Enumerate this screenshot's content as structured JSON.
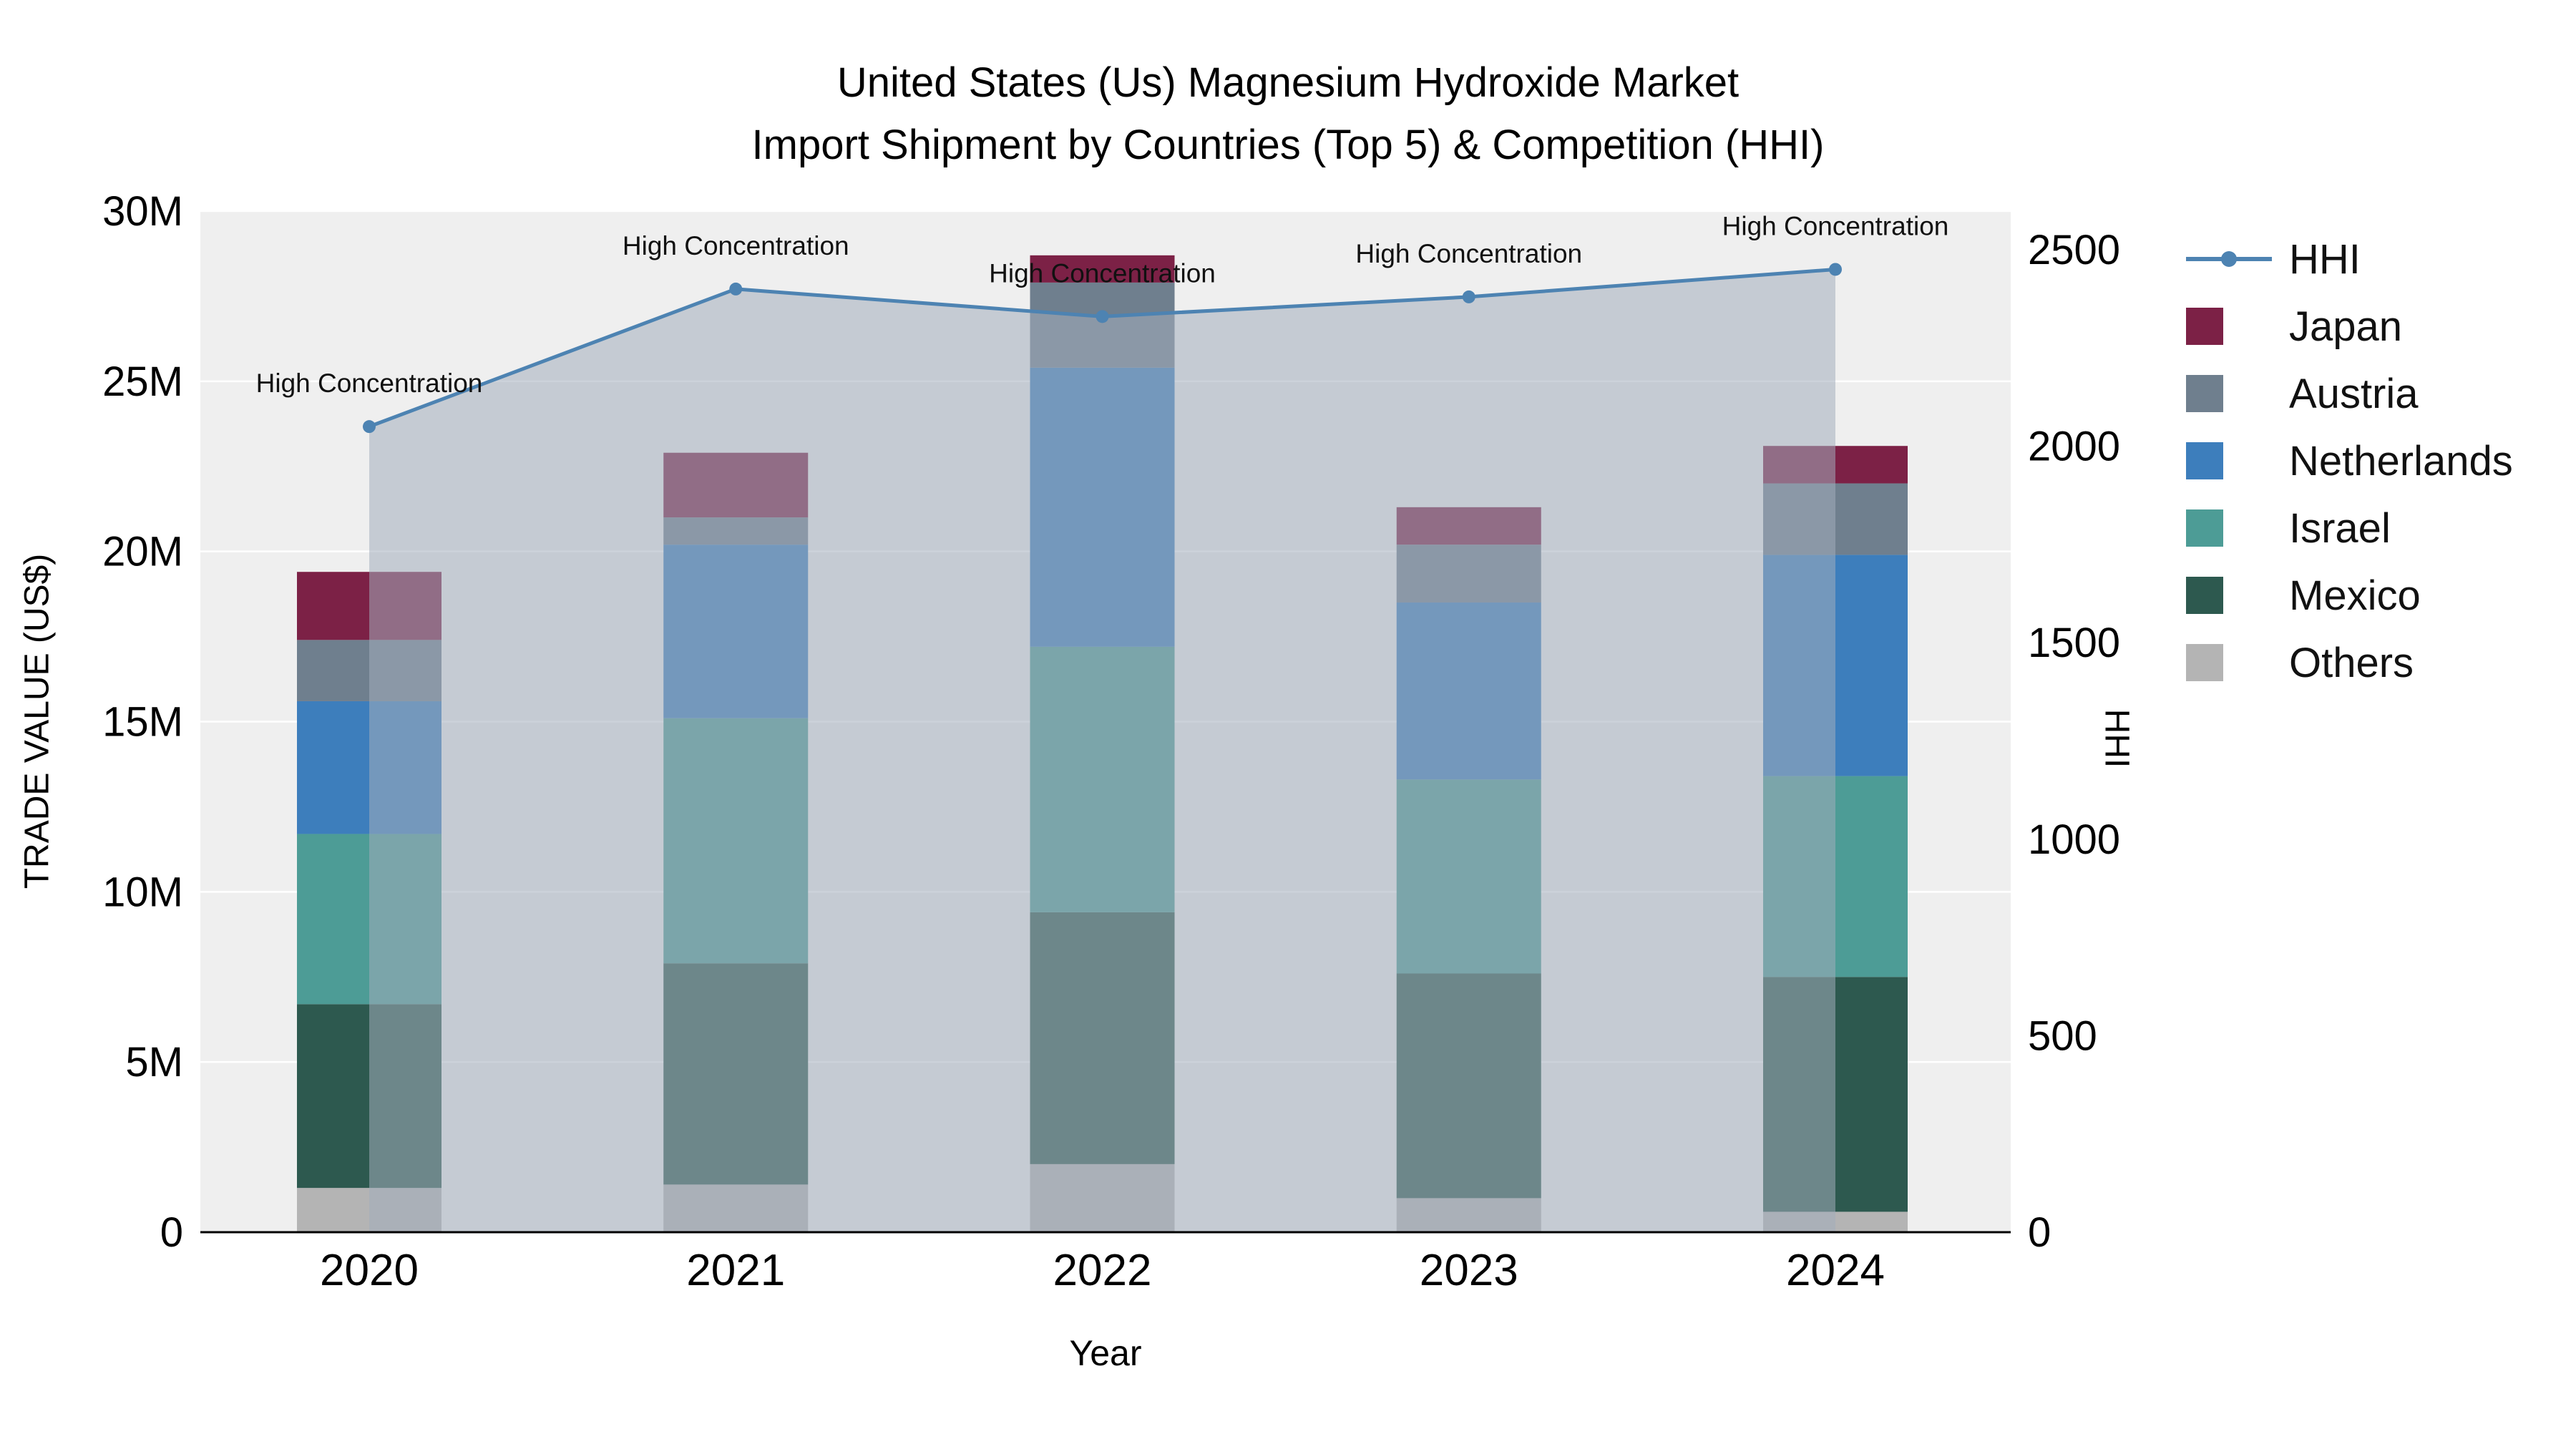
{
  "chart_data": {
    "type": "stacked-bar+line",
    "title_line1": "United States (Us) Magnesium Hydroxide Market",
    "title_line2": "Import Shipment by Countries (Top 5) & Competition (HHI)",
    "xlabel": "Year",
    "ylabel_left": "TRADE VALUE (US$)",
    "ylabel_right": "HHI",
    "categories": [
      "2020",
      "2021",
      "2022",
      "2023",
      "2024"
    ],
    "bar_unit": "US$ millions",
    "bar_series": [
      {
        "name": "Others",
        "color": "#b4b4b4",
        "values": [
          1.3,
          1.4,
          2.0,
          1.0,
          0.6
        ]
      },
      {
        "name": "Mexico",
        "color": "#2d594f",
        "values": [
          5.4,
          6.5,
          7.4,
          6.6,
          6.9
        ]
      },
      {
        "name": "Israel",
        "color": "#4d9c96",
        "values": [
          5.0,
          7.2,
          7.8,
          5.7,
          5.9
        ]
      },
      {
        "name": "Netherlands",
        "color": "#3d7ebc",
        "values": [
          3.9,
          5.1,
          8.2,
          5.2,
          6.5
        ]
      },
      {
        "name": "Austria",
        "color": "#6f7f8e",
        "values": [
          1.8,
          0.8,
          2.5,
          1.7,
          2.1
        ]
      },
      {
        "name": "Japan",
        "color": "#7c2146",
        "values": [
          2.0,
          1.9,
          0.8,
          1.1,
          1.1
        ]
      }
    ],
    "line_series": {
      "name": "HHI",
      "color": "#4d83b2",
      "fill": "#a3adbc",
      "fill_opacity": 0.55,
      "values": [
        2050,
        2400,
        2330,
        2380,
        2450
      ],
      "annotations": [
        "High Concentration",
        "High Concentration",
        "High Concentration",
        "High Concentration",
        "High Concentration"
      ]
    },
    "y_left": {
      "max": 30,
      "ticks": [
        0,
        5,
        10,
        15,
        20,
        25,
        30
      ],
      "tick_labels": [
        "0",
        "5M",
        "10M",
        "15M",
        "20M",
        "25M",
        "30M"
      ]
    },
    "y_right": {
      "max": 2500,
      "ticks": [
        0,
        500,
        1000,
        1500,
        2000,
        2500
      ],
      "tick_labels": [
        "0",
        "500",
        "1000",
        "1500",
        "2000",
        "2500"
      ]
    },
    "grid": "horizontal-major",
    "legend_position": "right"
  },
  "legend": {
    "items": [
      {
        "label": "HHI",
        "color": "#4d83b2",
        "type": "line"
      },
      {
        "label": "Japan",
        "color": "#7c2146",
        "type": "square"
      },
      {
        "label": "Austria",
        "color": "#6f7f8e",
        "type": "square"
      },
      {
        "label": "Netherlands",
        "color": "#3d7ebc",
        "type": "square"
      },
      {
        "label": "Israel",
        "color": "#4d9c96",
        "type": "square"
      },
      {
        "label": "Mexico",
        "color": "#2d594f",
        "type": "square"
      },
      {
        "label": "Others",
        "color": "#b4b4b4",
        "type": "square"
      }
    ]
  },
  "colors": {
    "plot_background": "#efefef",
    "gridline": "#ffffff",
    "axis_line": "#000000",
    "text": "#111111"
  }
}
